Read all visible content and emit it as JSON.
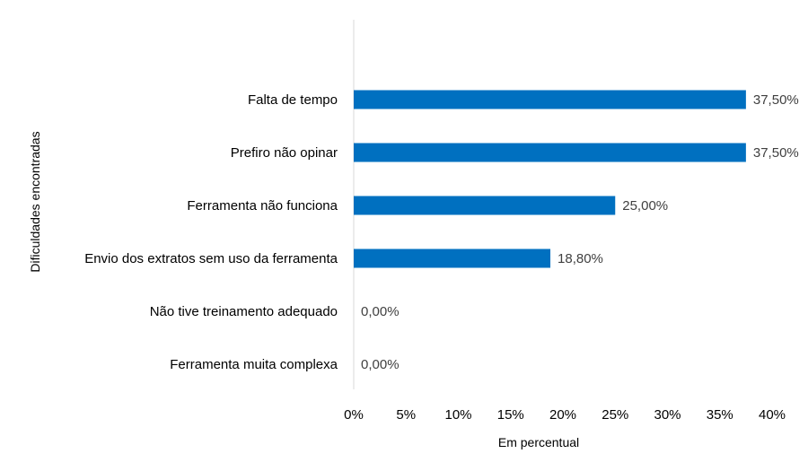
{
  "chart_data": {
    "type": "bar",
    "orientation": "horizontal",
    "categories": [
      "Falta de tempo",
      "Prefiro não opinar",
      "Ferramenta não funciona",
      "Envio dos extratos sem uso da ferramenta",
      "Não tive treinamento adequado",
      "Ferramenta muita complexa"
    ],
    "values": [
      37.5,
      37.5,
      25.0,
      18.8,
      0.0,
      0.0
    ],
    "data_labels": [
      "37,50%",
      "37,50%",
      "25,00%",
      "18,80%",
      "0,00%",
      "0,00%"
    ],
    "xlim": [
      0,
      40
    ],
    "x_ticks": [
      0,
      5,
      10,
      15,
      20,
      25,
      30,
      35,
      40
    ],
    "x_tick_labels": [
      "0%",
      "5%",
      "10%",
      "15%",
      "20%",
      "25%",
      "30%",
      "35%",
      "40%"
    ],
    "xlabel": "Em percentual",
    "ylabel": "Dificuldades encontradas",
    "title": "",
    "grid": false,
    "legend": "none",
    "bar_color": "#0070C0",
    "axis_color": "#D9D9D9"
  }
}
